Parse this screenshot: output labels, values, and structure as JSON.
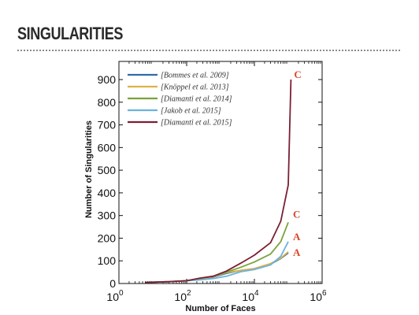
{
  "header": {
    "title": "SINGULARITIES"
  },
  "colors": {
    "bommes": "#2f6ea8",
    "knoppel": "#e0b048",
    "diamanti2014": "#7ba23c",
    "jakob": "#6ab3dc",
    "diamanti2015": "#7b1f33",
    "annotation": "#d9472b"
  },
  "chart_data": {
    "type": "line",
    "xlabel": "Number of Faces",
    "ylabel": "Number of Singularities",
    "xscale": "log",
    "xlim": [
      1,
      1000000
    ],
    "ylim": [
      0,
      980
    ],
    "x_ticks": [
      {
        "base": "10",
        "exp": "0",
        "value": 1
      },
      {
        "base": "10",
        "exp": "2",
        "value": 100
      },
      {
        "base": "10",
        "exp": "4",
        "value": 10000
      },
      {
        "base": "10",
        "exp": "6",
        "value": 1000000
      }
    ],
    "y_ticks": [
      0,
      100,
      200,
      300,
      400,
      500,
      600,
      700,
      800,
      900
    ],
    "legend_position": "top-left",
    "series": [
      {
        "name": "[Bommes et al. 2009]",
        "color_key": "bommes",
        "points": [
          [
            6,
            5
          ],
          [
            30,
            8
          ],
          [
            100,
            12
          ],
          [
            250,
            20
          ],
          [
            600,
            28
          ],
          [
            1500,
            45
          ],
          [
            4000,
            58
          ],
          [
            10000,
            65
          ],
          [
            30000,
            85
          ],
          [
            60000,
            110
          ],
          [
            100000,
            135
          ]
        ],
        "annotation": "A"
      },
      {
        "name": "[Knöppel et al. 2013]",
        "color_key": "knoppel",
        "points": [
          [
            6,
            5
          ],
          [
            30,
            8
          ],
          [
            100,
            12
          ],
          [
            250,
            20
          ],
          [
            600,
            30
          ],
          [
            1500,
            48
          ],
          [
            4000,
            58
          ],
          [
            10000,
            66
          ],
          [
            30000,
            88
          ],
          [
            60000,
            112
          ],
          [
            100000,
            140
          ]
        ]
      },
      {
        "name": "[Diamanti et al. 2014]",
        "color_key": "diamanti2014",
        "points": [
          [
            6,
            5
          ],
          [
            30,
            8
          ],
          [
            100,
            12
          ],
          [
            250,
            22
          ],
          [
            600,
            32
          ],
          [
            1500,
            50
          ],
          [
            4000,
            72
          ],
          [
            10000,
            95
          ],
          [
            30000,
            130
          ],
          [
            60000,
            185
          ],
          [
            100000,
            270
          ]
        ],
        "annotation": "C"
      },
      {
        "name": "[Jakob et al. 2015]",
        "color_key": "jakob",
        "points": [
          [
            6,
            5
          ],
          [
            30,
            8
          ],
          [
            100,
            12
          ],
          [
            250,
            16
          ],
          [
            600,
            22
          ],
          [
            1500,
            32
          ],
          [
            4000,
            52
          ],
          [
            10000,
            62
          ],
          [
            30000,
            82
          ],
          [
            60000,
            120
          ],
          [
            100000,
            185
          ]
        ],
        "annotation": "A"
      },
      {
        "name": "[Diamanti et al. 2015]",
        "color_key": "diamanti2015",
        "points": [
          [
            6,
            5
          ],
          [
            30,
            8
          ],
          [
            100,
            12
          ],
          [
            250,
            24
          ],
          [
            600,
            32
          ],
          [
            1500,
            55
          ],
          [
            4000,
            90
          ],
          [
            10000,
            125
          ],
          [
            30000,
            180
          ],
          [
            60000,
            275
          ],
          [
            100000,
            435
          ],
          [
            120000,
            900
          ]
        ],
        "annotation": "C"
      }
    ]
  }
}
